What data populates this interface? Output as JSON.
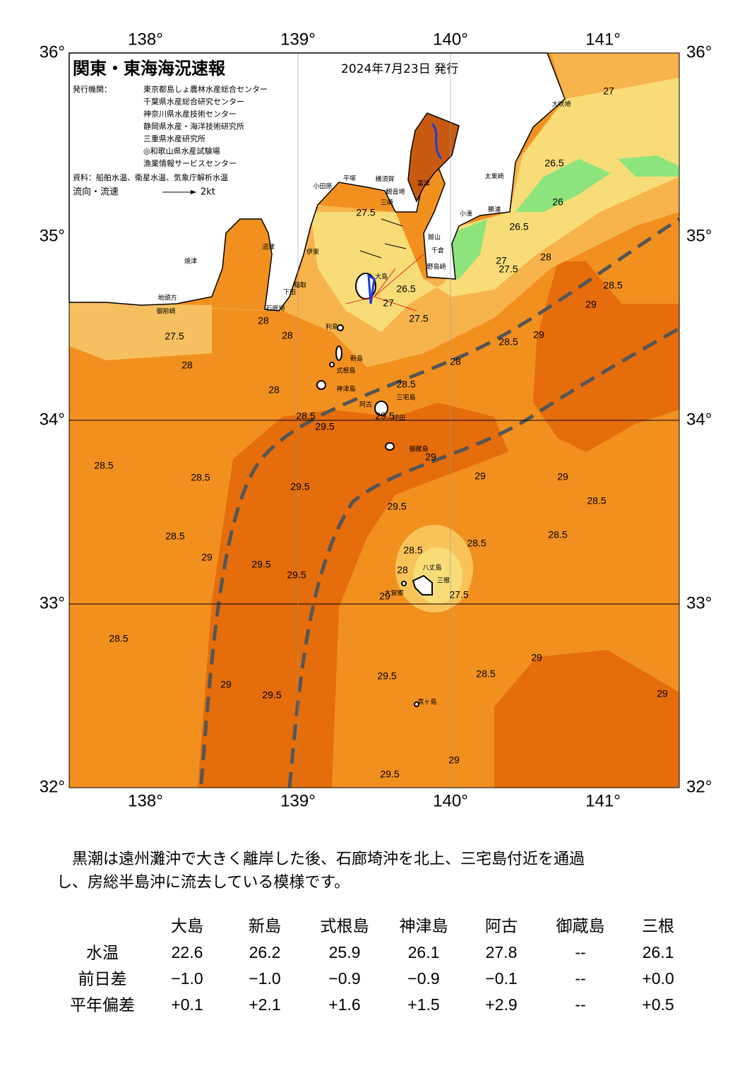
{
  "map": {
    "title": "関東・東海海況速報",
    "issued": "2024年7月23日 発行",
    "publisher_label": "発行機関：",
    "publishers": [
      "東京都島しょ農林水産総合センター",
      "千葉県水産総合研究センター",
      "神奈川県水産技術センター",
      "静岡県水産・海洋技術研究所",
      "三重県水産研究所",
      "◎和歌山県水産試験場",
      "漁業情報サービスセンター"
    ],
    "source": "資料：船舶水温、衛星水温、気象庁解析水温",
    "legend": {
      "label": "流向・流速",
      "scale": "2kt"
    },
    "lon_labels": [
      "138°",
      "139°",
      "140°",
      "141°"
    ],
    "lat_labels": [
      "36°",
      "35°",
      "34°",
      "33°",
      "32°"
    ],
    "places": [
      "大吠埼",
      "太東崎",
      "勝浦",
      "小湊",
      "館山",
      "千倉",
      "野島崎",
      "富津",
      "観音埼",
      "横須賀",
      "平塚",
      "小田原",
      "三崎",
      "伊東",
      "沼津",
      "焼津",
      "地頭方",
      "御前崎",
      "稲取",
      "下田",
      "石廊埼",
      "大島",
      "利島",
      "新島",
      "式根島",
      "神津島",
      "三宅島",
      "阿古",
      "坪田",
      "御蔵島",
      "八丈島",
      "三根",
      "大賀郷",
      "青ヶ島"
    ],
    "contours": [
      "27",
      "26.5",
      "26",
      "26.5",
      "27",
      "27.5",
      "28",
      "28.5",
      "29",
      "27.5",
      "26.5",
      "27",
      "27.5",
      "28",
      "28",
      "27.5",
      "28",
      "28",
      "28.5",
      "29",
      "28",
      "28.5",
      "28.5",
      "29.5",
      "29.5",
      "29",
      "29",
      "29",
      "28.5",
      "28.5",
      "29.5",
      "29.5",
      "28.5",
      "28.5",
      "28.5",
      "29",
      "29.5",
      "29.5",
      "28.5",
      "28.5",
      "28",
      "27.5",
      "29",
      "28.5",
      "29",
      "28.5",
      "29.5",
      "29",
      "29.5",
      "29",
      "29",
      "29.5"
    ]
  },
  "description": [
    "　黒潮は遠州灘沖で大きく離岸した後、石廊埼沖を北上、三宅島付近を通過",
    "し、房総半島沖に流去している模様です。"
  ],
  "table": {
    "columns": [
      "大島",
      "新島",
      "式根島",
      "神津島",
      "阿古",
      "御蔵島",
      "三根"
    ],
    "rows": [
      {
        "label": "水温",
        "values": [
          "22.6",
          "26.2",
          "25.9",
          "26.1",
          "27.8",
          "--",
          "26.1"
        ]
      },
      {
        "label": "前日差",
        "values": [
          "−1.0",
          "−1.0",
          "−0.9",
          "−0.9",
          "−0.1",
          "--",
          "+0.0"
        ]
      },
      {
        "label": "平年偏差",
        "values": [
          "+0.1",
          "+2.1",
          "+1.6",
          "+1.5",
          "+2.9",
          "--",
          "+0.5"
        ]
      }
    ]
  }
}
